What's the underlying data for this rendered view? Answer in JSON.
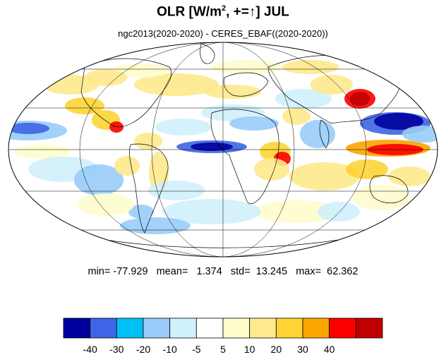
{
  "title": {
    "main": "OLR [W/m",
    "sup": "2",
    "tail": ", +=↑] JUL"
  },
  "subtitle": "ngc2013(2020-2020) - CERES_EBAF((2020-2020))",
  "stats": {
    "min": "-77.929",
    "mean": "1.374",
    "std": "13.245",
    "max": "62.362"
  },
  "colorbar": {
    "colors": [
      "#00009c",
      "#3d65e6",
      "#00c0f8",
      "#99ccf8",
      "#d0f0fc",
      "#ffffff",
      "#fefccc",
      "#fee98c",
      "#fdd434",
      "#fca400",
      "#fa0000",
      "#c00000"
    ],
    "labels": [
      "-40",
      "-30",
      "-20",
      "-10",
      "-5",
      "5",
      "10",
      "20",
      "30",
      "40"
    ]
  },
  "map": {
    "projection": "mollweide",
    "graticule": "30°",
    "variable": "OLR difference"
  }
}
